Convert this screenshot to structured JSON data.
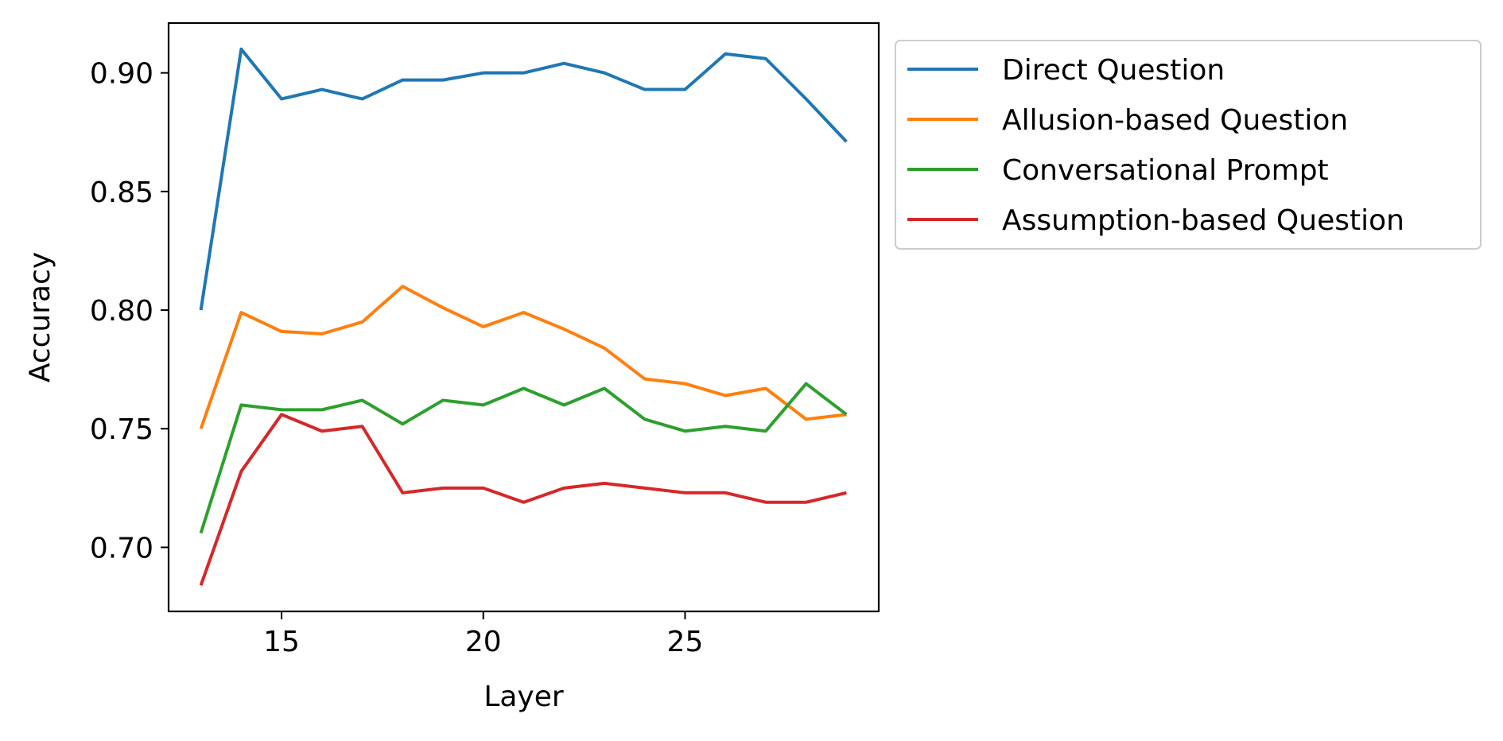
{
  "chart_data": {
    "type": "line",
    "title": "",
    "xlabel": "Layer",
    "ylabel": "Accuracy",
    "xlim": [
      12.2,
      29.8
    ],
    "ylim": [
      0.673,
      0.921
    ],
    "xticks": [
      15,
      20,
      25
    ],
    "xtick_labels": [
      "15",
      "20",
      "25"
    ],
    "yticks": [
      0.7,
      0.75,
      0.8,
      0.85,
      0.9
    ],
    "ytick_labels": [
      "0.70",
      "0.75",
      "0.80",
      "0.85",
      "0.90"
    ],
    "grid": false,
    "legend_position": "outside-upper-right",
    "x": [
      13,
      14,
      15,
      16,
      17,
      18,
      19,
      20,
      21,
      22,
      23,
      24,
      25,
      26,
      27,
      28,
      29
    ],
    "series": [
      {
        "name": "Direct Question",
        "color": "#1f77b4",
        "values": [
          0.8,
          0.91,
          0.889,
          0.893,
          0.889,
          0.897,
          0.897,
          0.9,
          0.9,
          0.904,
          0.9,
          0.893,
          0.893,
          0.908,
          0.906,
          0.889,
          0.871
        ]
      },
      {
        "name": "Allusion-based Question",
        "color": "#ff7f0e",
        "values": [
          0.75,
          0.799,
          0.791,
          0.79,
          0.795,
          0.81,
          0.801,
          0.793,
          0.799,
          0.792,
          0.784,
          0.771,
          0.769,
          0.764,
          0.767,
          0.754,
          0.756
        ]
      },
      {
        "name": "Conversational Prompt",
        "color": "#2ca02c",
        "values": [
          0.706,
          0.76,
          0.758,
          0.758,
          0.762,
          0.752,
          0.762,
          0.76,
          0.767,
          0.76,
          0.767,
          0.754,
          0.749,
          0.751,
          0.749,
          0.769,
          0.756
        ]
      },
      {
        "name": "Assumption-based Question",
        "color": "#d62728",
        "values": [
          0.684,
          0.732,
          0.756,
          0.749,
          0.751,
          0.723,
          0.725,
          0.725,
          0.719,
          0.725,
          0.727,
          0.725,
          0.723,
          0.723,
          0.719,
          0.719,
          0.723
        ]
      }
    ]
  }
}
